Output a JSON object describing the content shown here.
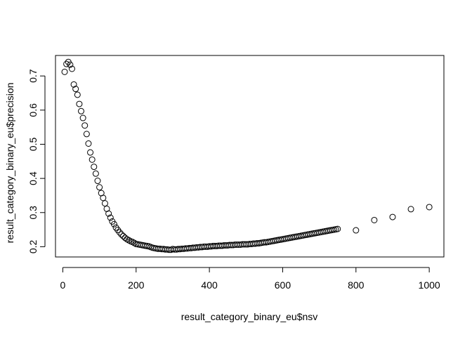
{
  "chart_data": {
    "type": "scatter",
    "title": "",
    "xlabel": "result_category_binary_eu$nsv",
    "ylabel": "result_category_binary_eu$precision",
    "xlim": [
      -20,
      1040
    ],
    "ylim": [
      0.17,
      0.76
    ],
    "xticks": [
      0,
      200,
      400,
      600,
      800,
      1000
    ],
    "xtick_labels": [
      "0",
      "200",
      "400",
      "600",
      "800",
      "1000"
    ],
    "yticks": [
      0.2,
      0.3,
      0.4,
      0.5,
      0.6,
      0.7
    ],
    "ytick_labels": [
      "0.2",
      "0.3",
      "0.4",
      "0.5",
      "0.6",
      "0.7"
    ],
    "grid": false,
    "legend": "none",
    "marker": "open-circle",
    "series": [
      {
        "x": [
          5,
          10,
          15,
          20,
          25,
          30,
          35,
          40,
          45,
          50,
          55,
          60,
          65,
          70,
          75,
          80,
          85,
          90,
          95,
          100,
          105,
          110,
          115,
          120,
          125,
          130,
          135,
          140,
          145,
          150,
          155,
          160,
          165,
          170,
          175,
          180,
          185,
          190,
          195,
          200,
          205,
          210,
          215,
          220,
          225,
          230,
          235,
          240,
          245,
          250,
          255,
          260,
          265,
          270,
          275,
          280,
          285,
          290,
          295,
          300,
          305,
          310,
          315,
          320,
          325,
          330,
          335,
          340,
          345,
          350,
          355,
          360,
          365,
          370,
          375,
          380,
          385,
          390,
          395,
          400,
          405,
          410,
          415,
          420,
          425,
          430,
          435,
          440,
          445,
          450,
          455,
          460,
          465,
          470,
          475,
          480,
          485,
          490,
          495,
          500,
          505,
          510,
          515,
          520,
          525,
          530,
          535,
          540,
          545,
          550,
          555,
          560,
          565,
          570,
          575,
          580,
          585,
          590,
          595,
          600,
          605,
          610,
          615,
          620,
          625,
          630,
          635,
          640,
          645,
          650,
          655,
          660,
          665,
          670,
          675,
          680,
          685,
          690,
          695,
          700,
          705,
          710,
          715,
          720,
          725,
          730,
          735,
          740,
          745,
          750,
          800,
          850,
          900,
          950,
          1000
        ],
        "y": [
          0.712,
          0.735,
          0.741,
          0.733,
          0.721,
          0.675,
          0.662,
          0.645,
          0.618,
          0.597,
          0.577,
          0.555,
          0.53,
          0.502,
          0.476,
          0.455,
          0.434,
          0.414,
          0.393,
          0.374,
          0.357,
          0.343,
          0.327,
          0.311,
          0.297,
          0.285,
          0.274,
          0.266,
          0.256,
          0.249,
          0.242,
          0.236,
          0.231,
          0.226,
          0.222,
          0.219,
          0.216,
          0.214,
          0.211,
          0.208,
          0.207,
          0.206,
          0.205,
          0.204,
          0.203,
          0.202,
          0.201,
          0.199,
          0.197,
          0.196,
          0.195,
          0.194,
          0.194,
          0.193,
          0.193,
          0.192,
          0.192,
          0.191,
          0.191,
          0.193,
          0.192,
          0.192,
          0.193,
          0.193,
          0.194,
          0.194,
          0.195,
          0.195,
          0.196,
          0.196,
          0.197,
          0.197,
          0.198,
          0.198,
          0.199,
          0.199,
          0.2,
          0.2,
          0.2,
          0.201,
          0.201,
          0.202,
          0.202,
          0.202,
          0.203,
          0.203,
          0.203,
          0.204,
          0.204,
          0.204,
          0.205,
          0.205,
          0.205,
          0.206,
          0.206,
          0.206,
          0.206,
          0.207,
          0.207,
          0.207,
          0.207,
          0.208,
          0.208,
          0.209,
          0.209,
          0.21,
          0.21,
          0.211,
          0.212,
          0.213,
          0.213,
          0.214,
          0.215,
          0.216,
          0.217,
          0.218,
          0.219,
          0.22,
          0.221,
          0.222,
          0.223,
          0.224,
          0.225,
          0.226,
          0.227,
          0.228,
          0.229,
          0.23,
          0.231,
          0.232,
          0.233,
          0.234,
          0.235,
          0.236,
          0.237,
          0.238,
          0.239,
          0.24,
          0.241,
          0.242,
          0.243,
          0.244,
          0.245,
          0.246,
          0.247,
          0.248,
          0.249,
          0.25,
          0.251,
          0.252,
          0.248,
          0.278,
          0.287,
          0.31,
          0.316
        ]
      }
    ]
  }
}
